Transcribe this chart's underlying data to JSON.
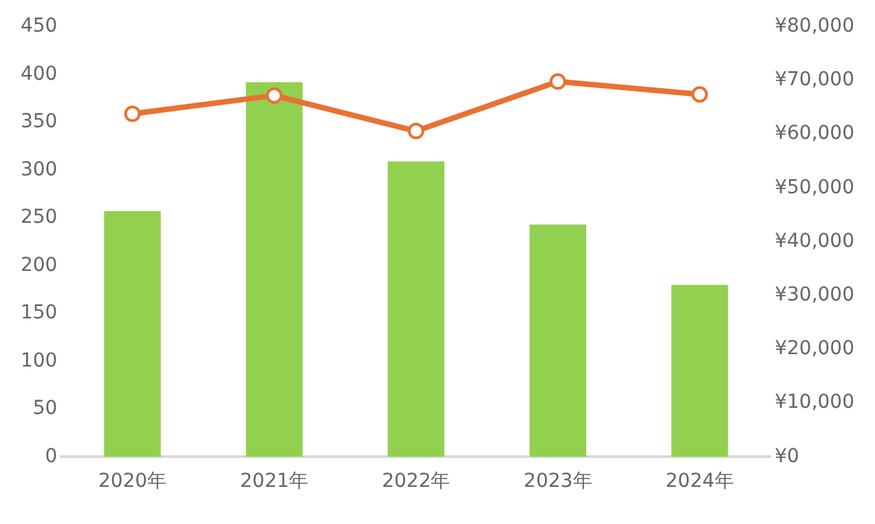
{
  "chart_data": {
    "type": "bar",
    "categories": [
      "2020年",
      "2021年",
      "2022年",
      "2023年",
      "2024年"
    ],
    "series": [
      {
        "color": "#92d050",
        "values": [
          257,
          392,
          309,
          243,
          180
        ]
      },
      {
        "type": "line",
        "axis": "y2",
        "color": "#e97132",
        "values": [
          63800,
          67200,
          60600,
          69800,
          67400
        ]
      }
    ],
    "ylim": [
      0,
      450
    ],
    "yticks": [
      0,
      50,
      100,
      150,
      200,
      250,
      300,
      350,
      400,
      450
    ],
    "y2lim": [
      0,
      80000
    ],
    "y2ticks": [
      {
        "value": 0,
        "label": "¥0"
      },
      {
        "value": 10000,
        "label": "¥10,000"
      },
      {
        "value": 20000,
        "label": "¥20,000"
      },
      {
        "value": 30000,
        "label": "¥30,000"
      },
      {
        "value": 40000,
        "label": "¥40,000"
      },
      {
        "value": 50000,
        "label": "¥50,000"
      },
      {
        "value": 60000,
        "label": "¥60,000"
      },
      {
        "value": 70000,
        "label": "¥70,000"
      },
      {
        "value": 80000,
        "label": "¥80,000"
      }
    ],
    "grid": false,
    "legend": false,
    "marker": "circle",
    "line_style": "solid"
  }
}
